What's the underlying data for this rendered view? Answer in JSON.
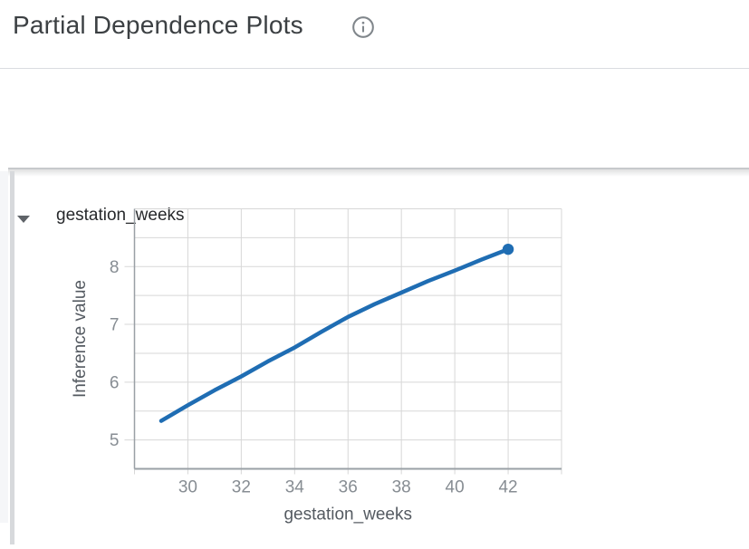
{
  "header": {
    "title": "Partial Dependence Plots"
  },
  "icons": {
    "info": "info-icon",
    "collapse": "triangle-down-icon"
  },
  "section": {
    "label": "gestation_weeks",
    "state": "expanded"
  },
  "colors": {
    "accent_blue": "#1f6db3",
    "grid_line": "#d7d7d7",
    "axis_line": "#9aa0a6",
    "tick_label": "#878d93",
    "axis_title": "#545a61",
    "page_title": "#3c4043",
    "section_label": "#27292c",
    "divider": "#dadce0",
    "icon_gray": "#80868b"
  },
  "chart_data": {
    "type": "line",
    "title": "",
    "xlabel": "gestation_weeks",
    "ylabel": "Inference value",
    "x": [
      29,
      30,
      31,
      32,
      33,
      34,
      35,
      36,
      37,
      38,
      39,
      40,
      41,
      42
    ],
    "y": [
      5.33,
      5.6,
      5.86,
      6.1,
      6.36,
      6.6,
      6.87,
      7.13,
      7.35,
      7.55,
      7.75,
      7.93,
      8.12,
      8.3
    ],
    "xlim": [
      28,
      44
    ],
    "ylim": [
      4.5,
      9.0
    ],
    "x_tick_labels": [
      30,
      32,
      34,
      36,
      38,
      40,
      42
    ],
    "x_tick_step": 2,
    "y_tick_labels": [
      5,
      6,
      7,
      8
    ],
    "y_grid_step": 0.5,
    "grid": true,
    "legend_position": "none",
    "endpoint_marker": "filled-circle",
    "line_width": 4.5
  }
}
